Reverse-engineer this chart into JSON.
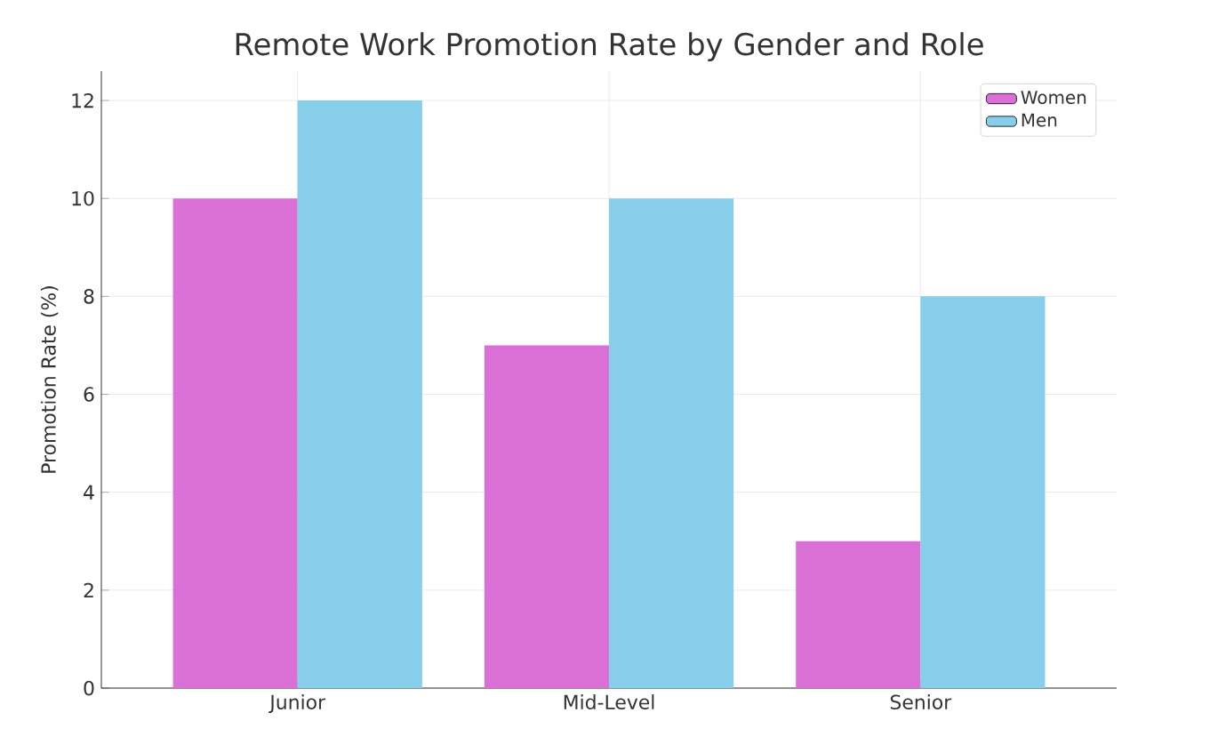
{
  "chart_data": {
    "type": "bar",
    "title": "Remote Work Promotion Rate by Gender and Role",
    "ylabel": "Promotion Rate (%)",
    "categories": [
      "Junior",
      "Mid-Level",
      "Senior"
    ],
    "series": [
      {
        "name": "Women",
        "color": "#da70d6",
        "values": [
          10,
          7,
          3
        ]
      },
      {
        "name": "Men",
        "color": "#87ceeb",
        "values": [
          12,
          10,
          8
        ]
      }
    ],
    "ylim": [
      0,
      12.6
    ],
    "yticks": [
      0,
      2,
      4,
      6,
      8,
      10,
      12
    ],
    "grid": true,
    "legend": "top right"
  }
}
